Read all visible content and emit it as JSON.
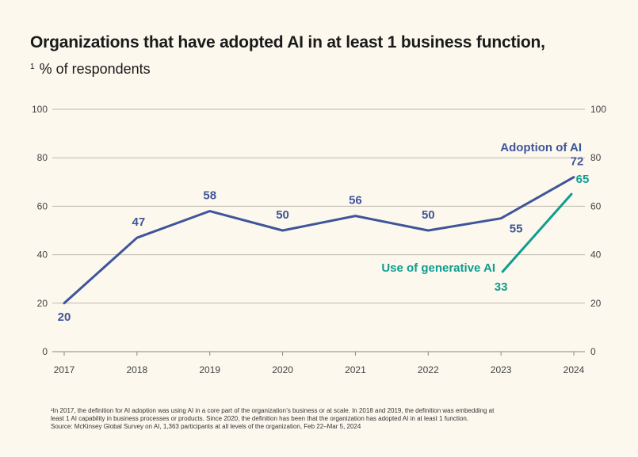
{
  "title": "Organizations that have adopted AI in at least 1 business function,",
  "subtitle_marker": "1",
  "subtitle": "% of respondents",
  "colors": {
    "background": "#fcf8ee",
    "adoption": "#3f5599",
    "generative": "#0f9d8f",
    "grid": "#bdb9ad",
    "axis_text": "#444444"
  },
  "chart_data": {
    "type": "line",
    "x": [
      "2017",
      "2018",
      "2019",
      "2020",
      "2021",
      "2022",
      "2023",
      "2024"
    ],
    "ylim": [
      0,
      100
    ],
    "yticks": [
      "0",
      "20",
      "40",
      "60",
      "80",
      "100"
    ],
    "grid": true,
    "series": [
      {
        "name": "Adoption of AI",
        "values": [
          20,
          47,
          58,
          50,
          56,
          50,
          55,
          72
        ],
        "labels": [
          "20",
          "47",
          "58",
          "50",
          "56",
          "50",
          "55",
          "72"
        ],
        "color": "#3f5599"
      },
      {
        "name": "Use of generative AI",
        "x": [
          "2023",
          "2024"
        ],
        "values": [
          33,
          65
        ],
        "labels": [
          "33",
          "65"
        ],
        "color": "#0f9d8f"
      }
    ]
  },
  "footnote": {
    "lines": [
      "¹In 2017, the definition for AI adoption was using AI in a core part of the organization’s business or at scale. In 2018 and 2019, the definition was embedding at",
      "least 1 AI capability in business processes or products. Since 2020, the definition has been that the organization has adopted AI in at least 1 function.",
      "Source: McKinsey Global Survey on AI, 1,363 participants at all levels of the organization, Feb 22–Mar 5, 2024"
    ]
  }
}
